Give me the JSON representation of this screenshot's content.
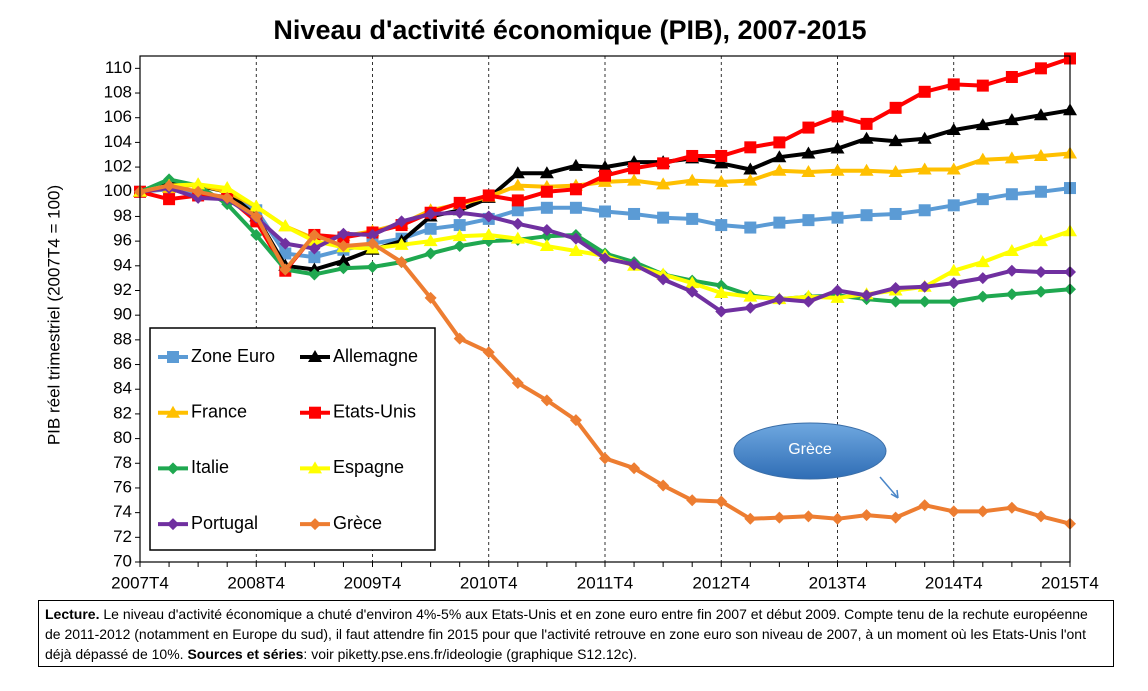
{
  "chart_data": {
    "type": "line",
    "title": "Niveau d'activité économique (PIB), 2007-2015",
    "y_label": "PIB réel trimestriel (2007T4 = 100)",
    "categories": [
      "2007T4",
      null,
      null,
      null,
      "2008T4",
      null,
      null,
      null,
      "2009T4",
      null,
      null,
      null,
      "2010T4",
      null,
      null,
      null,
      "2011T4",
      null,
      null,
      null,
      "2012T4",
      null,
      null,
      null,
      "2013T4",
      null,
      null,
      null,
      "2014T4",
      null,
      null,
      null,
      "2015T4"
    ],
    "ylim": [
      70,
      111
    ],
    "yticks": [
      70,
      72,
      74,
      76,
      78,
      80,
      82,
      84,
      86,
      88,
      90,
      92,
      94,
      96,
      98,
      100,
      102,
      104,
      106,
      108,
      110
    ],
    "xgrid": true,
    "series": [
      {
        "name": "Zone Euro",
        "color": "#5b9bd5",
        "marker": "square",
        "values": [
          100,
          100.2,
          99.8,
          99.6,
          98.5,
          95.0,
          94.7,
          95.3,
          95.8,
          96.2,
          97.0,
          97.3,
          97.8,
          98.5,
          98.7,
          98.7,
          98.4,
          98.2,
          97.9,
          97.8,
          97.3,
          97.1,
          97.5,
          97.7,
          97.9,
          98.1,
          98.2,
          98.5,
          98.9,
          99.4,
          99.8,
          100.0,
          100.3
        ]
      },
      {
        "name": "Allemagne",
        "color": "#000000",
        "marker": "triangle",
        "values": [
          100,
          100.8,
          100.5,
          100.0,
          98.0,
          94.0,
          93.7,
          94.4,
          95.3,
          96.0,
          98.0,
          98.5,
          99.5,
          101.5,
          101.5,
          102.1,
          102.0,
          102.4,
          102.4,
          102.7,
          102.3,
          101.8,
          102.8,
          103.1,
          103.5,
          104.3,
          104.1,
          104.3,
          105.0,
          105.4,
          105.8,
          106.2,
          106.6
        ]
      },
      {
        "name": "France",
        "color": "#ffc000",
        "marker": "triangle",
        "values": [
          100,
          100.3,
          100.6,
          100.0,
          98.8,
          97.2,
          96.2,
          96.4,
          96.8,
          97.4,
          98.5,
          99.0,
          99.6,
          100.5,
          100.4,
          100.5,
          100.8,
          100.9,
          100.6,
          100.9,
          100.8,
          100.9,
          101.7,
          101.6,
          101.7,
          101.7,
          101.6,
          101.8,
          101.8,
          102.6,
          102.7,
          102.9,
          103.1
        ]
      },
      {
        "name": "Etats-Unis",
        "color": "#ff0000",
        "marker": "square",
        "values": [
          100,
          99.4,
          99.7,
          99.6,
          97.6,
          93.6,
          96.5,
          96.3,
          96.7,
          97.3,
          98.3,
          99.1,
          99.7,
          99.3,
          100.0,
          100.2,
          101.3,
          101.9,
          102.3,
          102.9,
          102.9,
          103.6,
          104.0,
          105.2,
          106.1,
          105.5,
          106.8,
          108.1,
          108.7,
          108.6,
          109.3,
          110.0,
          110.8
        ]
      },
      {
        "name": "Italie",
        "color": "#1fa850",
        "marker": "diamond",
        "values": [
          100,
          101.0,
          100.5,
          99.0,
          96.5,
          93.7,
          93.3,
          93.8,
          93.9,
          94.3,
          95.0,
          95.6,
          96.0,
          96.1,
          96.4,
          96.5,
          95.0,
          94.3,
          93.3,
          92.8,
          92.4,
          91.6,
          91.3,
          91.5,
          91.6,
          91.3,
          91.1,
          91.1,
          91.1,
          91.5,
          91.7,
          91.9,
          92.1
        ]
      },
      {
        "name": "Espagne",
        "color": "#ffff00",
        "marker": "triangle",
        "values": [
          100,
          100.5,
          100.6,
          100.3,
          98.8,
          97.2,
          96.0,
          95.5,
          95.4,
          95.7,
          96.0,
          96.4,
          96.5,
          96.2,
          95.6,
          95.2,
          94.8,
          94.0,
          93.3,
          92.6,
          91.8,
          91.5,
          91.3,
          91.5,
          91.4,
          91.7,
          92.0,
          92.3,
          93.6,
          94.3,
          95.2,
          96.0,
          96.8
        ]
      },
      {
        "name": "Portugal",
        "color": "#7030a0",
        "marker": "diamond",
        "values": [
          100,
          100.3,
          99.5,
          99.4,
          97.9,
          95.8,
          95.4,
          96.6,
          96.5,
          97.6,
          98.2,
          98.3,
          98.0,
          97.4,
          96.9,
          96.2,
          94.6,
          94.1,
          92.9,
          91.9,
          90.3,
          90.6,
          91.3,
          91.1,
          92.0,
          91.6,
          92.2,
          92.3,
          92.6,
          93.0,
          93.6,
          93.5,
          93.5
        ]
      },
      {
        "name": "Grèce",
        "color": "#ed7d31",
        "marker": "diamond",
        "values": [
          100,
          100.5,
          100.0,
          99.5,
          98.0,
          93.7,
          96.5,
          95.6,
          95.8,
          94.3,
          91.4,
          88.1,
          87.0,
          84.5,
          83.1,
          81.5,
          78.4,
          77.6,
          76.2,
          75.0,
          74.9,
          73.5,
          73.6,
          73.7,
          73.5,
          73.8,
          73.6,
          74.6,
          74.1,
          74.1,
          74.4,
          73.7,
          73.1
        ]
      }
    ],
    "annotation": "Grèce",
    "note": {
      "label": "Lecture.",
      "text": " Le niveau d'activité économique a chuté d'environ 4%-5% aux Etats-Unis et en zone euro entre fin 2007 et début 2009. Compte tenu de la rechute européenne de 2011-2012 (notamment en Europe du sud), il faut attendre fin 2015 pour que l'activité retrouve en zone euro son niveau de 2007, à un moment où les Etats-Unis l'ont déjà dépassé de 10%. ",
      "sources_label": "Sources et séries",
      "sources_text": ": voir piketty.pse.ens.fr/ideologie (graphique S12.12c)."
    }
  }
}
